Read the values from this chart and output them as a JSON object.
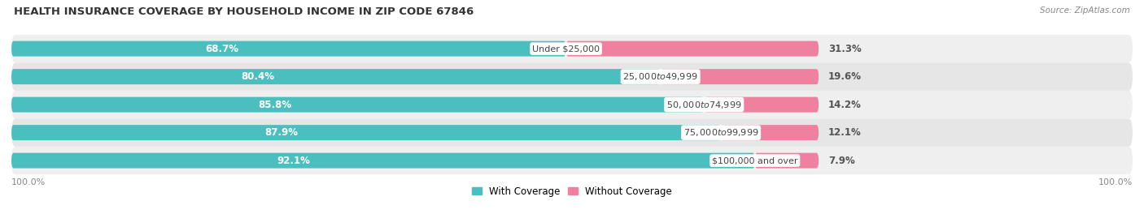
{
  "title": "HEALTH INSURANCE COVERAGE BY HOUSEHOLD INCOME IN ZIP CODE 67846",
  "source": "Source: ZipAtlas.com",
  "categories": [
    "Under $25,000",
    "$25,000 to $49,999",
    "$50,000 to $74,999",
    "$75,000 to $99,999",
    "$100,000 and over"
  ],
  "with_coverage": [
    68.7,
    80.4,
    85.8,
    87.9,
    92.1
  ],
  "without_coverage": [
    31.3,
    19.6,
    14.2,
    12.1,
    7.9
  ],
  "color_with": "#4BBFBF",
  "color_without": "#F080A0",
  "row_bg_color": "#EFEFEF",
  "row_bg_alt": "#E6E6E6",
  "background_color": "#FFFFFF",
  "label_color_with": "#FFFFFF",
  "title_fontsize": 9.5,
  "source_fontsize": 7.5,
  "bar_label_fontsize": 8.5,
  "category_fontsize": 8.0,
  "legend_fontsize": 8.5,
  "axis_label_fontsize": 8.0,
  "bar_scale": 0.72
}
